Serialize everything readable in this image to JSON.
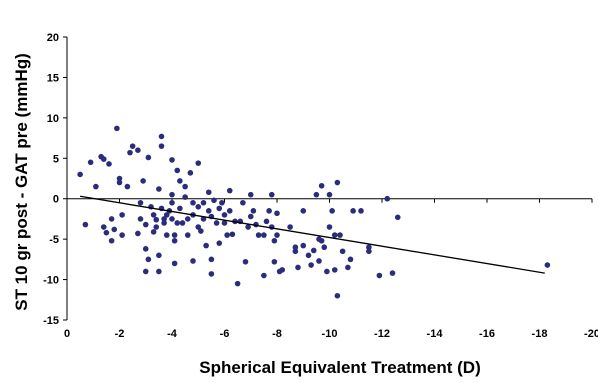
{
  "chart_data": {
    "type": "scatter",
    "xlabel": "Spherical Equivalent Treatment (D)",
    "ylabel": "ST 10 gr post - GAT pre (mmHg)",
    "xlim": [
      0,
      -20
    ],
    "ylim": [
      -15,
      20
    ],
    "x_ticks": [
      0,
      -2,
      -4,
      -6,
      -8,
      -10,
      -12,
      -14,
      -16,
      -18,
      -20
    ],
    "y_ticks": [
      20,
      15,
      10,
      5,
      0,
      -5,
      -10,
      -15
    ],
    "grid": false,
    "legend": "none",
    "marker_color": "#2b2c7c",
    "series": [
      {
        "points": [
          [
            -0.5,
            3
          ],
          [
            -0.7,
            -3.2
          ],
          [
            -0.9,
            4.5
          ],
          [
            -1.1,
            1.5
          ],
          [
            -1.3,
            5.2
          ],
          [
            -1.4,
            4.9
          ],
          [
            -1.4,
            -3.5
          ],
          [
            -1.5,
            -4.2
          ],
          [
            -1.6,
            4.3
          ],
          [
            -1.7,
            -2.5
          ],
          [
            -1.7,
            -5.2
          ],
          [
            -1.8,
            -3.8
          ],
          [
            -1.9,
            8.7
          ],
          [
            -2.0,
            2.5
          ],
          [
            -2.0,
            2.0
          ],
          [
            -2.1,
            -2.0
          ],
          [
            -2.1,
            -4.5
          ],
          [
            -2.3,
            1.5
          ],
          [
            -2.4,
            5.7
          ],
          [
            -2.5,
            6.5
          ],
          [
            -2.7,
            6.0
          ],
          [
            -2.7,
            -4.3
          ],
          [
            -2.8,
            -0.5
          ],
          [
            -2.8,
            -2.5
          ],
          [
            -2.9,
            2.2
          ],
          [
            -3.0,
            -3.2
          ],
          [
            -3.0,
            -6.2
          ],
          [
            -3.0,
            -9.0
          ],
          [
            -3.1,
            -7.5
          ],
          [
            -3.1,
            5.1
          ],
          [
            -3.2,
            -1.0
          ],
          [
            -3.3,
            -2.0
          ],
          [
            -3.3,
            -4.1
          ],
          [
            -3.4,
            -2.6
          ],
          [
            -3.4,
            -3.5
          ],
          [
            -3.5,
            -7.0
          ],
          [
            -3.5,
            -9.0
          ],
          [
            -3.5,
            1.2
          ],
          [
            -3.6,
            7.7
          ],
          [
            -3.6,
            6.5
          ],
          [
            -3.6,
            -1.2
          ],
          [
            -3.7,
            -2.5
          ],
          [
            -3.7,
            -3.0
          ],
          [
            -3.8,
            -2.0
          ],
          [
            -3.8,
            -4.5
          ],
          [
            -3.9,
            -1.5
          ],
          [
            -4.0,
            -0.5
          ],
          [
            -4.0,
            4.8
          ],
          [
            -4.0,
            0.5
          ],
          [
            -4.0,
            -2.5
          ],
          [
            -4.1,
            -4.5
          ],
          [
            -4.1,
            -8.0
          ],
          [
            -4.1,
            -5.2
          ],
          [
            -4.2,
            -3.0
          ],
          [
            -4.2,
            3.5
          ],
          [
            -4.3,
            -1.2
          ],
          [
            -4.3,
            2.2
          ],
          [
            -4.4,
            -3.0
          ],
          [
            -4.5,
            1.5
          ],
          [
            -4.5,
            0.2
          ],
          [
            -4.6,
            -2.5
          ],
          [
            -4.6,
            -4.5
          ],
          [
            -4.7,
            3.2
          ],
          [
            -4.8,
            -0.5
          ],
          [
            -4.8,
            -2.0
          ],
          [
            -4.8,
            -7.7
          ],
          [
            -5.0,
            4.4
          ],
          [
            -5.0,
            -1.0
          ],
          [
            -5.0,
            -3.5
          ],
          [
            -5.1,
            -4.0
          ],
          [
            -5.2,
            -0.5
          ],
          [
            -5.2,
            -2.5
          ],
          [
            -5.3,
            -5.8
          ],
          [
            -5.4,
            0.8
          ],
          [
            -5.4,
            -1.5
          ],
          [
            -5.5,
            -2.2
          ],
          [
            -5.5,
            -7.5
          ],
          [
            -5.5,
            -9.3
          ],
          [
            -5.6,
            -0.2
          ],
          [
            -5.7,
            -3.0
          ],
          [
            -5.8,
            -1.2
          ],
          [
            -5.8,
            -5.5
          ],
          [
            -5.9,
            -0.5
          ],
          [
            -6.0,
            -2.0
          ],
          [
            -6.0,
            -3.0
          ],
          [
            -6.1,
            -4.5
          ],
          [
            -6.2,
            1.0
          ],
          [
            -6.2,
            -1.5
          ],
          [
            -6.3,
            -4.4
          ],
          [
            -6.4,
            -2.8
          ],
          [
            -6.5,
            -10.5
          ],
          [
            -6.6,
            -2.8
          ],
          [
            -6.7,
            -0.5
          ],
          [
            -6.8,
            -7.8
          ],
          [
            -6.9,
            -3.5
          ],
          [
            -7.0,
            -2.2
          ],
          [
            -7.0,
            0.5
          ],
          [
            -7.1,
            -1.5
          ],
          [
            -7.2,
            -3.2
          ],
          [
            -7.3,
            -4.5
          ],
          [
            -7.5,
            -4.5
          ],
          [
            -7.5,
            -9.5
          ],
          [
            -7.6,
            -2.8
          ],
          [
            -7.7,
            -1.5
          ],
          [
            -7.8,
            0.5
          ],
          [
            -7.8,
            -3.5
          ],
          [
            -7.9,
            -5.2
          ],
          [
            -7.9,
            -7.8
          ],
          [
            -8.0,
            -4.5
          ],
          [
            -8.0,
            -1.8
          ],
          [
            -8.1,
            -9.0
          ],
          [
            -8.2,
            -8.8
          ],
          [
            -8.5,
            -3.5
          ],
          [
            -8.7,
            -6.0
          ],
          [
            -8.7,
            -6.5
          ],
          [
            -8.8,
            -8.5
          ],
          [
            -9.0,
            -1.5
          ],
          [
            -9.0,
            -5.8
          ],
          [
            -9.2,
            -7.0
          ],
          [
            -9.3,
            -8.2
          ],
          [
            -9.4,
            -6.4
          ],
          [
            -9.5,
            0.5
          ],
          [
            -9.6,
            -5.0
          ],
          [
            -9.6,
            -7.7
          ],
          [
            -9.7,
            1.6
          ],
          [
            -9.7,
            -5.2
          ],
          [
            -9.8,
            -6.0
          ],
          [
            -9.9,
            -9.0
          ],
          [
            -10.0,
            -3.5
          ],
          [
            -10.0,
            0.5
          ],
          [
            -10.1,
            -1.5
          ],
          [
            -10.2,
            -4.5
          ],
          [
            -10.2,
            -8.8
          ],
          [
            -10.3,
            2.0
          ],
          [
            -10.3,
            -12.0
          ],
          [
            -10.4,
            -4.5
          ],
          [
            -10.5,
            -6.5
          ],
          [
            -10.7,
            -8.5
          ],
          [
            -10.8,
            -7.5
          ],
          [
            -10.9,
            -1.5
          ],
          [
            -11.2,
            -1.5
          ],
          [
            -11.5,
            -6.5
          ],
          [
            -11.5,
            -6.0
          ],
          [
            -11.9,
            -9.5
          ],
          [
            -12.2,
            0.0
          ],
          [
            -12.4,
            -9.2
          ],
          [
            -12.6,
            -2.3
          ],
          [
            -18.3,
            -8.2
          ]
        ]
      }
    ],
    "trendline": {
      "points": [
        [
          -0.5,
          0.3
        ],
        [
          -18.2,
          -9.2
        ]
      ]
    }
  }
}
